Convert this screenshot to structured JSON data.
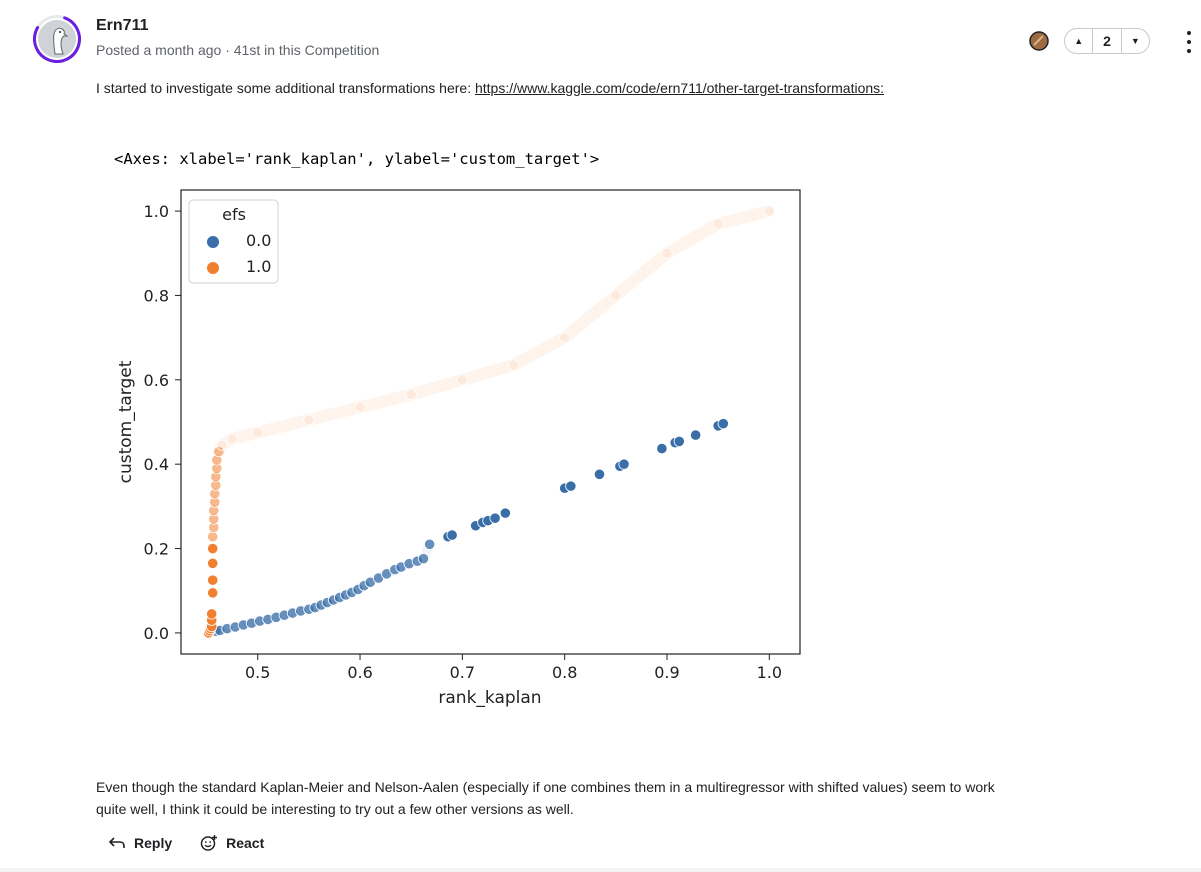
{
  "comment": {
    "author": "Ern711",
    "posted": "Posted a month ago",
    "separator": "·",
    "rank_note": "41st in this Competition",
    "medal_color": "#9c6b3f",
    "avatar_ring_color": "#6a1fe0",
    "votes": {
      "count": "2",
      "up_icon": "caret-up-icon",
      "down_icon": "caret-down-icon"
    },
    "more_icon": "more-vertical-icon",
    "intro_text": "I started to investigate some additional transformations here: ",
    "link_text": "https://www.kaggle.com/code/ern711/other-target-transformations:",
    "axes_repr": "<Axes: xlabel='rank_kaplan', ylabel='custom_target'>",
    "body_text": "Even though the standard Kaplan-Meier and Nelson-Aalen (especially if one combines them in a multiregressor with shifted values) seem to work quite well, I think it could be interesting to try out a few other versions as well.",
    "actions": {
      "reply": "Reply",
      "react": "React"
    }
  },
  "chart_data": {
    "type": "scatter",
    "xlabel": "rank_kaplan",
    "ylabel": "custom_target",
    "xlim": [
      0.425,
      1.03
    ],
    "ylim": [
      -0.05,
      1.05
    ],
    "xticks": [
      0.5,
      0.6,
      0.7,
      0.8,
      0.9,
      1.0
    ],
    "yticks": [
      0.0,
      0.2,
      0.4,
      0.6,
      0.8,
      1.0
    ],
    "xtick_labels": [
      "0.5",
      "0.6",
      "0.7",
      "0.8",
      "0.9",
      "1.0"
    ],
    "ytick_labels": [
      "0.0",
      "0.2",
      "0.4",
      "0.6",
      "0.8",
      "1.0"
    ],
    "legend": {
      "title": "efs",
      "placement": "top-left",
      "entries": [
        "0.0",
        "1.0"
      ]
    },
    "series": [
      {
        "name": "0.0",
        "color": "#3a6ea8",
        "points": [
          [
            0.452,
            0.0
          ],
          [
            0.459,
            0.004
          ],
          [
            0.463,
            0.006
          ],
          [
            0.47,
            0.01
          ],
          [
            0.478,
            0.014
          ],
          [
            0.486,
            0.019
          ],
          [
            0.494,
            0.023
          ],
          [
            0.502,
            0.028
          ],
          [
            0.51,
            0.032
          ],
          [
            0.518,
            0.037
          ],
          [
            0.526,
            0.042
          ],
          [
            0.534,
            0.047
          ],
          [
            0.542,
            0.052
          ],
          [
            0.55,
            0.056
          ],
          [
            0.556,
            0.06
          ],
          [
            0.562,
            0.066
          ],
          [
            0.568,
            0.072
          ],
          [
            0.574,
            0.078
          ],
          [
            0.58,
            0.084
          ],
          [
            0.586,
            0.09
          ],
          [
            0.592,
            0.096
          ],
          [
            0.598,
            0.103
          ],
          [
            0.604,
            0.112
          ],
          [
            0.61,
            0.12
          ],
          [
            0.618,
            0.13
          ],
          [
            0.626,
            0.14
          ],
          [
            0.634,
            0.15
          ],
          [
            0.64,
            0.156
          ],
          [
            0.648,
            0.164
          ],
          [
            0.656,
            0.17
          ],
          [
            0.662,
            0.176
          ],
          [
            0.668,
            0.21
          ],
          [
            0.686,
            0.228
          ],
          [
            0.69,
            0.232
          ],
          [
            0.713,
            0.254
          ],
          [
            0.72,
            0.262
          ],
          [
            0.725,
            0.266
          ],
          [
            0.732,
            0.272
          ],
          [
            0.742,
            0.284
          ],
          [
            0.8,
            0.343
          ],
          [
            0.806,
            0.348
          ],
          [
            0.834,
            0.376
          ],
          [
            0.854,
            0.395
          ],
          [
            0.858,
            0.4
          ],
          [
            0.895,
            0.437
          ],
          [
            0.908,
            0.451
          ],
          [
            0.912,
            0.454
          ],
          [
            0.928,
            0.469
          ],
          [
            0.95,
            0.491
          ],
          [
            0.955,
            0.496
          ]
        ]
      },
      {
        "name": "1.0",
        "color": "#f08030",
        "points": [
          [
            0.452,
            0.0
          ],
          [
            0.453,
            0.005
          ],
          [
            0.454,
            0.01
          ],
          [
            0.455,
            0.015
          ],
          [
            0.455,
            0.03
          ],
          [
            0.455,
            0.045
          ],
          [
            0.456,
            0.095
          ],
          [
            0.456,
            0.125
          ],
          [
            0.456,
            0.165
          ],
          [
            0.456,
            0.2
          ],
          [
            0.456,
            0.228
          ],
          [
            0.457,
            0.25
          ],
          [
            0.457,
            0.27
          ],
          [
            0.457,
            0.29
          ],
          [
            0.458,
            0.31
          ],
          [
            0.458,
            0.33
          ],
          [
            0.459,
            0.35
          ],
          [
            0.459,
            0.37
          ],
          [
            0.46,
            0.39
          ],
          [
            0.46,
            0.41
          ],
          [
            0.462,
            0.43
          ],
          [
            0.465,
            0.445
          ],
          [
            0.475,
            0.46
          ],
          [
            0.5,
            0.475
          ],
          [
            0.55,
            0.505
          ],
          [
            0.6,
            0.535
          ],
          [
            0.65,
            0.565
          ],
          [
            0.7,
            0.6
          ],
          [
            0.75,
            0.635
          ],
          [
            0.8,
            0.7
          ],
          [
            0.85,
            0.8
          ],
          [
            0.9,
            0.9
          ],
          [
            0.95,
            0.97
          ],
          [
            1.0,
            1.0
          ]
        ]
      }
    ]
  }
}
